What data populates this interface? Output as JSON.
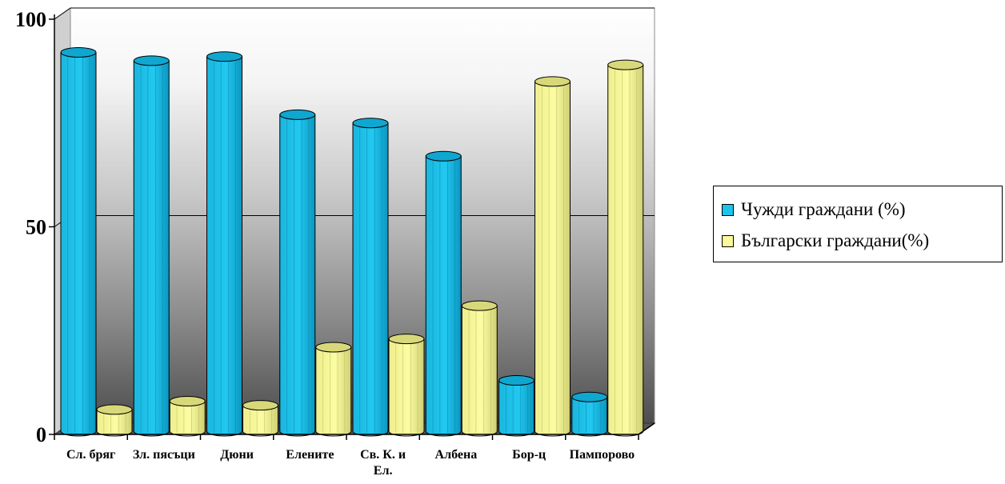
{
  "chart_data": {
    "type": "bar",
    "categories": [
      "Сл. бряг",
      "Зл. пясъци",
      "Дюни",
      "Елените",
      "Св. К. и Ел.",
      "Албена",
      "Бор-ц",
      "Пампорово"
    ],
    "series": [
      {
        "name": "Чужди граждани (%)",
        "color": "#1cc4ec",
        "values": [
          92,
          90,
          91,
          77,
          75,
          67,
          13,
          9
        ]
      },
      {
        "name": "Български граждани(%)",
        "color": "#fafa9c",
        "values": [
          6,
          8,
          7,
          21,
          23,
          31,
          85,
          89
        ]
      }
    ],
    "y_ticks": [
      "0",
      "50",
      "100"
    ],
    "ylim": [
      0,
      100
    ],
    "grid": true,
    "legend_position": "right",
    "three_d": true
  }
}
